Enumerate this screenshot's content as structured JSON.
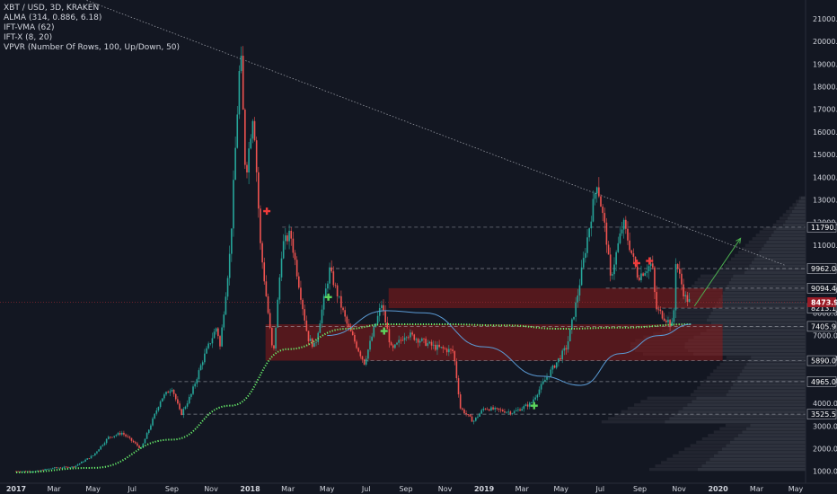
{
  "chart_data": {
    "type": "candlestick",
    "symbol_line": "XBT / USD, 3D, KRAKEN",
    "indicators": [
      "ALMA (314, 0.886, 6.18)",
      "IFT-VMA (62)",
      "IFT-X (8, 20)",
      "VPVR (Number Of Rows, 100, Up/Down, 50)"
    ],
    "y_ticks": [
      1000,
      2000,
      3000,
      4000,
      5000,
      6000,
      7000,
      8000,
      9000,
      10000,
      11000,
      12000,
      13000,
      14000,
      15000,
      16000,
      17000,
      18000,
      19000,
      20000,
      21000
    ],
    "y_tick_labels": [
      "1000.0",
      "2000.0",
      "3000.0",
      "4000.0",
      "5000.0",
      "6000.0",
      "7000.0",
      "8000.0",
      "9000.0",
      "10000.0",
      "11000.0",
      "12000.0",
      "13000.0",
      "14000.0",
      "15000.0",
      "16000.0",
      "17000.0",
      "18000.0",
      "19000.0",
      "20000.0",
      "21000.0"
    ],
    "x_ticks": [
      "2017",
      "Mar",
      "May",
      "Jul",
      "Sep",
      "Nov",
      "2018",
      "Mar",
      "May",
      "Jul",
      "Sep",
      "Nov",
      "2019",
      "Mar",
      "May",
      "Jul",
      "Sep",
      "Nov",
      "2020",
      "Mar",
      "May"
    ],
    "price_levels": [
      {
        "value": 11790.1,
        "label": "11790.1",
        "style": "dashed"
      },
      {
        "value": 9962.0,
        "label": "9962.0",
        "style": "dashed"
      },
      {
        "value": 9094.4,
        "label": "9094.4",
        "style": "dashed"
      },
      {
        "value": 8213.1,
        "label": "8213.1",
        "style": "dashed"
      },
      {
        "value": 7405.9,
        "label": "7405.9",
        "style": "dashed"
      },
      {
        "value": 5890.0,
        "label": "5890.0",
        "style": "dashed"
      },
      {
        "value": 4965.0,
        "label": "4965.0",
        "style": "dashed"
      },
      {
        "value": 3525.5,
        "label": "3525.5",
        "style": "dashed"
      }
    ],
    "current_price": {
      "value": 8473.9,
      "label": "8473.9"
    },
    "zones": [
      {
        "from": "2018-01-25",
        "to": "2020-01-08",
        "low": 5890,
        "high": 7500
      },
      {
        "from": "2018-08-05",
        "to": "2020-01-08",
        "low": 8213.1,
        "high": 9094.4
      }
    ],
    "price_path": [
      [
        "2017-01-01",
        1000
      ],
      [
        "2017-02-01",
        1000
      ],
      [
        "2017-03-01",
        1150
      ],
      [
        "2017-04-01",
        1200
      ],
      [
        "2017-05-01",
        1700
      ],
      [
        "2017-05-25",
        2500
      ],
      [
        "2017-06-15",
        2700
      ],
      [
        "2017-07-15",
        2000
      ],
      [
        "2017-08-15",
        4200
      ],
      [
        "2017-09-01",
        4700
      ],
      [
        "2017-09-15",
        3500
      ],
      [
        "2017-10-01",
        4400
      ],
      [
        "2017-10-20",
        6000
      ],
      [
        "2017-11-10",
        7400
      ],
      [
        "2017-11-15",
        6500
      ],
      [
        "2017-12-01",
        10800
      ],
      [
        "2017-12-17",
        19700
      ],
      [
        "2017-12-25",
        14000
      ],
      [
        "2018-01-06",
        17000
      ],
      [
        "2018-01-17",
        11000
      ],
      [
        "2018-02-06",
        6000
      ],
      [
        "2018-02-20",
        11000
      ],
      [
        "2018-03-05",
        11500
      ],
      [
        "2018-04-01",
        6900
      ],
      [
        "2018-04-12",
        6500
      ],
      [
        "2018-05-05",
        9900
      ],
      [
        "2018-06-01",
        7500
      ],
      [
        "2018-06-28",
        5800
      ],
      [
        "2018-07-25",
        8400
      ],
      [
        "2018-08-10",
        6300
      ],
      [
        "2018-09-01",
        7100
      ],
      [
        "2018-10-15",
        6500
      ],
      [
        "2018-11-14",
        6300
      ],
      [
        "2018-11-25",
        3800
      ],
      [
        "2018-12-15",
        3200
      ],
      [
        "2019-01-01",
        3800
      ],
      [
        "2019-02-15",
        3600
      ],
      [
        "2019-03-15",
        4000
      ],
      [
        "2019-04-05",
        5000
      ],
      [
        "2019-05-10",
        6500
      ],
      [
        "2019-05-25",
        8500
      ],
      [
        "2019-06-26",
        13800
      ],
      [
        "2019-07-10",
        11500
      ],
      [
        "2019-07-17",
        9500
      ],
      [
        "2019-08-06",
        12000
      ],
      [
        "2019-08-29",
        9600
      ],
      [
        "2019-09-20",
        10200
      ],
      [
        "2019-09-26",
        8200
      ],
      [
        "2019-10-23",
        7400
      ],
      [
        "2019-10-27",
        10300
      ],
      [
        "2019-11-10",
        8700
      ],
      [
        "2019-11-18",
        8473.9
      ]
    ],
    "alma_path": [
      [
        "2017-01-01",
        950
      ],
      [
        "2017-05-01",
        1150
      ],
      [
        "2017-09-01",
        2400
      ],
      [
        "2017-12-01",
        3900
      ],
      [
        "2018-03-01",
        6400
      ],
      [
        "2018-06-01",
        7300
      ],
      [
        "2018-08-01",
        7500
      ],
      [
        "2018-11-01",
        7500
      ],
      [
        "2019-02-01",
        7450
      ],
      [
        "2019-05-01",
        7300
      ],
      [
        "2019-08-01",
        7350
      ],
      [
        "2019-11-20",
        7500
      ]
    ],
    "vma_path": [
      [
        "2018-05-01",
        7000
      ],
      [
        "2018-08-01",
        8100
      ],
      [
        "2018-10-01",
        8000
      ],
      [
        "2019-01-01",
        6500
      ],
      [
        "2019-04-01",
        5200
      ],
      [
        "2019-06-01",
        4800
      ],
      [
        "2019-08-01",
        6200
      ],
      [
        "2019-10-01",
        7000
      ],
      [
        "2019-11-20",
        7500
      ]
    ],
    "signals": [
      {
        "date": "2018-01-27",
        "price": 12500,
        "kind": "sell"
      },
      {
        "date": "2018-05-03",
        "price": 8700,
        "kind": "buy"
      },
      {
        "date": "2018-07-29",
        "price": 7200,
        "kind": "buy"
      },
      {
        "date": "2019-03-20",
        "price": 3900,
        "kind": "buy"
      },
      {
        "date": "2019-08-27",
        "price": 10200,
        "kind": "sell"
      },
      {
        "date": "2019-09-16",
        "price": 10300,
        "kind": "sell"
      }
    ],
    "trendline": {
      "from": [
        "2017-01-01",
        23000
      ],
      "to": [
        "2020-04-15",
        10100
      ]
    },
    "projection_arrow": {
      "from": [
        "2019-11-25",
        8300
      ],
      "to": [
        "2020-02-05",
        11300
      ]
    },
    "colors": {
      "background": "#131722",
      "up": "#26a69a",
      "down": "#ef5350",
      "alma": "#69f36c",
      "vma": "#5b9bd5",
      "zone": "#8b1a1a",
      "level_line": "#b2b5be",
      "trendline": "#9598a1",
      "arrow": "#4caf50",
      "axis_text": "#d1d4dc",
      "current_bg": "#9c1c27"
    }
  }
}
